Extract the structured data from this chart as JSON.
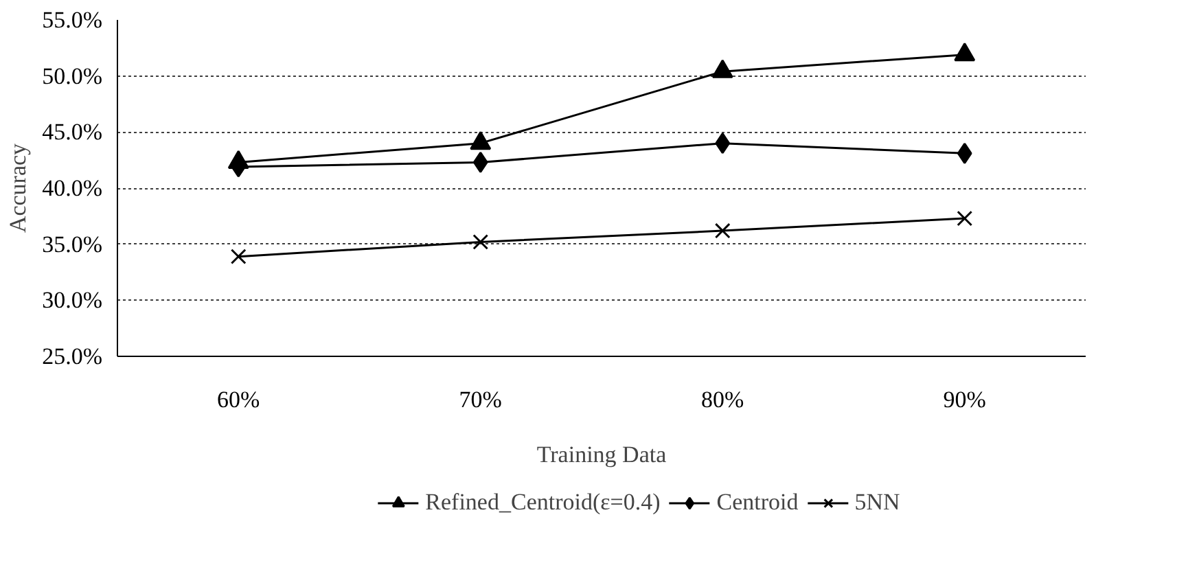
{
  "chart_data": {
    "type": "line",
    "xlabel": "Training Data",
    "ylabel": "Accuracy",
    "categories": [
      "60%",
      "70%",
      "80%",
      "90%"
    ],
    "series": [
      {
        "name": "Refined_Centroid(ε=0.4)",
        "color": "#000000",
        "marker": "triangle",
        "values": [
          42.3,
          44.0,
          50.4,
          51.9
        ]
      },
      {
        "name": "Centroid",
        "color": "#000000",
        "marker": "diamond",
        "values": [
          41.9,
          42.3,
          44.0,
          43.1
        ]
      },
      {
        "name": "5NN",
        "color": "#000000",
        "marker": "cross",
        "values": [
          33.9,
          35.2,
          36.2,
          37.3
        ]
      }
    ],
    "ylim": [
      25,
      55
    ],
    "yticks": [
      {
        "value": 25,
        "label": "25.0%"
      },
      {
        "value": 30,
        "label": "30.0%"
      },
      {
        "value": 35,
        "label": "35.0%"
      },
      {
        "value": 40,
        "label": "40.0%"
      },
      {
        "value": 45,
        "label": "45.0%"
      },
      {
        "value": 50,
        "label": "50.0%"
      },
      {
        "value": 55,
        "label": "55.0%"
      }
    ],
    "grid": "y",
    "legend": "bottom",
    "line_style": "solid"
  }
}
